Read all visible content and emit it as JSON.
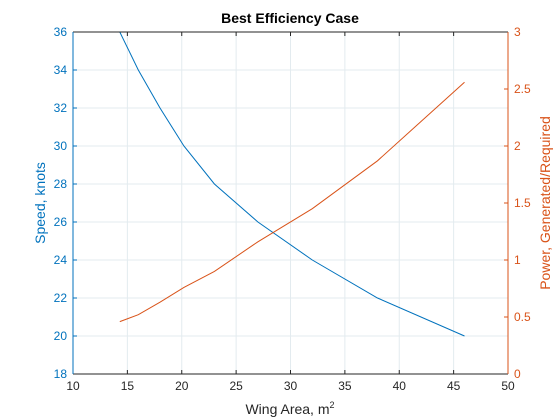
{
  "chart_data": {
    "type": "line",
    "title": "Best Efficiency Case",
    "xlabel": "Wing Area, m",
    "xlabel_superscript": "2",
    "ylabel_left": "Speed, knots",
    "ylabel_right": "Power, Generated/Required",
    "xlim": [
      10,
      50
    ],
    "ylim_left": [
      18,
      36
    ],
    "ylim_right": [
      0,
      3
    ],
    "grid": true,
    "xticks": [
      "10",
      "15",
      "20",
      "25",
      "30",
      "35",
      "40",
      "45",
      "50"
    ],
    "yticks_left": [
      "18",
      "20",
      "22",
      "24",
      "26",
      "28",
      "30",
      "32",
      "34",
      "36"
    ],
    "yticks_right": [
      "0",
      "0.5",
      "1",
      "1.5",
      "2",
      "2.5",
      "3"
    ],
    "colors": {
      "left": "#0072BD",
      "right": "#D95319",
      "axis": "#262626",
      "grid": "#E3EBEF"
    },
    "series": [
      {
        "axis": "left",
        "x": [
          14.3,
          16.0,
          18.0,
          20.2,
          23.0,
          27.0,
          32.0,
          38.0,
          46.0
        ],
        "y": [
          36.0,
          34.0,
          32.0,
          30.0,
          28.0,
          26.0,
          24.0,
          22.0,
          20.0
        ]
      },
      {
        "axis": "right",
        "x": [
          14.3,
          16.0,
          18.0,
          20.2,
          23.0,
          27.0,
          32.0,
          38.0,
          46.0
        ],
        "y": [
          0.46,
          0.52,
          0.63,
          0.76,
          0.9,
          1.16,
          1.45,
          1.87,
          2.56
        ]
      }
    ]
  }
}
